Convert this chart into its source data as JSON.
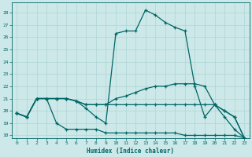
{
  "xlabel": "Humidex (Indice chaleur)",
  "xlim": [
    -0.5,
    23.5
  ],
  "ylim": [
    17.8,
    28.8
  ],
  "yticks": [
    18,
    19,
    20,
    21,
    22,
    23,
    24,
    25,
    26,
    27,
    28
  ],
  "xticks": [
    0,
    1,
    2,
    3,
    4,
    5,
    6,
    7,
    8,
    9,
    10,
    11,
    12,
    13,
    14,
    15,
    16,
    17,
    18,
    19,
    20,
    21,
    22,
    23
  ],
  "bg_color": "#cce8e8",
  "grid_color": "#b0d4d4",
  "line_color": "#006666",
  "line1_y": [
    19.8,
    19.5,
    21.0,
    21.0,
    21.0,
    21.0,
    20.8,
    20.2,
    19.5,
    19.0,
    26.3,
    26.5,
    26.5,
    28.2,
    27.8,
    27.2,
    26.8,
    26.5,
    22.0,
    19.5,
    20.5,
    19.5,
    18.5,
    17.8
  ],
  "line2_y": [
    19.8,
    19.5,
    21.0,
    21.0,
    21.0,
    21.0,
    20.8,
    20.5,
    20.5,
    20.5,
    21.0,
    21.2,
    21.5,
    21.8,
    22.0,
    22.0,
    22.2,
    22.2,
    22.2,
    22.0,
    20.5,
    20.0,
    19.5,
    17.8
  ],
  "line3_y": [
    19.8,
    19.5,
    21.0,
    21.0,
    21.0,
    21.0,
    20.8,
    20.5,
    20.5,
    20.5,
    20.5,
    20.5,
    20.5,
    20.5,
    20.5,
    20.5,
    20.5,
    20.5,
    20.5,
    20.5,
    20.5,
    20.0,
    19.5,
    17.8
  ],
  "line4_y": [
    19.8,
    19.5,
    21.0,
    21.0,
    19.0,
    18.5,
    18.5,
    18.5,
    18.5,
    18.2,
    18.2,
    18.2,
    18.2,
    18.2,
    18.2,
    18.2,
    18.2,
    18.0,
    18.0,
    18.0,
    18.0,
    18.0,
    18.0,
    17.8
  ]
}
